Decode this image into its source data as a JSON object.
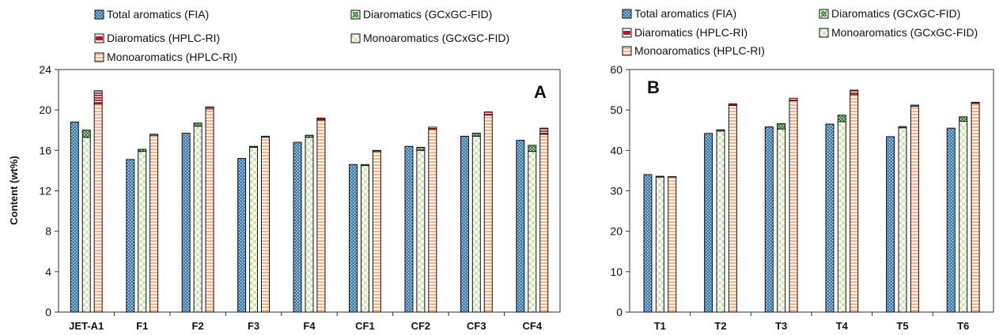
{
  "colors": {
    "fia_fill": "#2e7bd6",
    "fia_dot": "#ffffff",
    "monoGC_fill": "#cfe6b8",
    "diGC_fill": "#2e8b2e",
    "monoHPLC_fill": "#f6b48c",
    "diHPLC_fill": "#c0181f",
    "outline": "#111111",
    "axis": "#333333"
  },
  "legend_labels": {
    "fia": "Total aromatics (FIA)",
    "diGC": "Diaromatics (GCxGC-FID)",
    "diHPLC": "Diaromatics (HPLC-RI)",
    "monoGC": "Monoaromatics (GCxGC-FID)",
    "monoHPLC": "Monoaromatics (HPLC-RI)"
  },
  "chart_data": [
    {
      "panel_label": "A",
      "type": "bar",
      "stacked_groups": true,
      "ylabel": "Content (wt%)",
      "xlabel": "",
      "ylim": [
        0,
        24
      ],
      "yticks": [
        0,
        4,
        8,
        12,
        16,
        20,
        24
      ],
      "grid": false,
      "legend_position": "top",
      "categories": [
        "JET-A1",
        "F1",
        "F2",
        "F3",
        "F4",
        "CF1",
        "CF2",
        "CF3",
        "CF4"
      ],
      "series": [
        {
          "name": "Total aromatics (FIA)",
          "values": [
            18.8,
            15.1,
            17.7,
            15.2,
            16.8,
            14.6,
            16.4,
            17.4,
            17.0
          ]
        },
        {
          "name": "Monoaromatics (GCxGC-FID)",
          "values": [
            17.3,
            15.9,
            18.4,
            16.3,
            17.3,
            14.5,
            16.0,
            17.4,
            15.9
          ]
        },
        {
          "name": "Diaromatics (GCxGC-FID)",
          "values": [
            0.7,
            0.2,
            0.3,
            0.1,
            0.2,
            0.1,
            0.3,
            0.3,
            0.6
          ]
        },
        {
          "name": "Monoaromatics (HPLC-RI)",
          "values": [
            20.6,
            17.5,
            20.1,
            17.3,
            19.0,
            15.9,
            18.1,
            19.5,
            17.6
          ]
        },
        {
          "name": "Diaromatics (HPLC-RI)",
          "values": [
            1.3,
            0.1,
            0.2,
            0.1,
            0.2,
            0.1,
            0.2,
            0.3,
            0.6
          ]
        }
      ]
    },
    {
      "panel_label": "B",
      "type": "bar",
      "stacked_groups": true,
      "ylabel": "",
      "xlabel": "",
      "ylim": [
        0,
        60
      ],
      "yticks": [
        0,
        10,
        20,
        30,
        40,
        50,
        60
      ],
      "grid": false,
      "legend_position": "top",
      "categories": [
        "T1",
        "T2",
        "T3",
        "T4",
        "T5",
        "T6"
      ],
      "series": [
        {
          "name": "Total aromatics (FIA)",
          "values": [
            34.0,
            44.2,
            45.8,
            46.5,
            43.4,
            45.5
          ]
        },
        {
          "name": "Monoaromatics (GCxGC-FID)",
          "values": [
            33.4,
            44.8,
            45.3,
            47.1,
            45.6,
            47.2
          ]
        },
        {
          "name": "Diaromatics (GCxGC-FID)",
          "values": [
            0.2,
            0.3,
            1.3,
            1.6,
            0.3,
            1.1
          ]
        },
        {
          "name": "Monoaromatics (HPLC-RI)",
          "values": [
            33.4,
            51.1,
            52.3,
            53.8,
            50.9,
            51.6
          ]
        },
        {
          "name": "Diaromatics (HPLC-RI)",
          "values": [
            0.1,
            0.4,
            0.6,
            1.1,
            0.3,
            0.3
          ]
        }
      ]
    }
  ]
}
